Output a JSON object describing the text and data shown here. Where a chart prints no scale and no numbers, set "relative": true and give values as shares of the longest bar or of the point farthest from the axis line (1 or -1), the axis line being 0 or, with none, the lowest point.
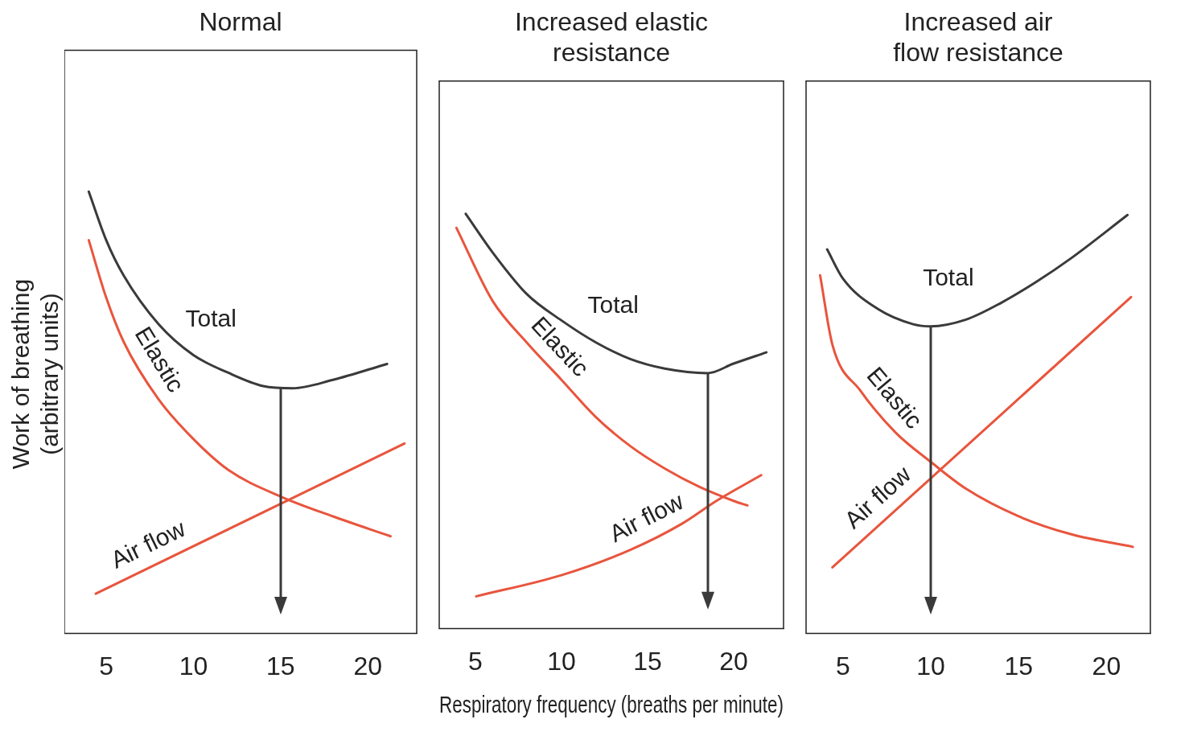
{
  "chart_data": [
    {
      "type": "line",
      "title": "Normal",
      "ylabel": "Work of breathing (arbitrary units)",
      "relative": true,
      "xlim": [
        2.6,
        22.8
      ],
      "xticks": [
        5,
        10,
        15,
        20
      ],
      "grid": false,
      "legend": false,
      "marker": "none",
      "ref_lines": [
        {
          "axis": "x",
          "value": 15,
          "color": "#3a3a3a"
        }
      ],
      "series": [
        {
          "name": "Total",
          "color": "#3a3a3a",
          "x": [
            4,
            5,
            6,
            8,
            10,
            12,
            14,
            15.7,
            18,
            21.1
          ],
          "values": [
            1.0,
            0.89,
            0.81,
            0.7,
            0.63,
            0.59,
            0.56,
            0.555,
            0.574,
            0.61
          ]
        },
        {
          "name": "Elastic",
          "color": "#e8553d",
          "x": [
            4,
            5,
            6,
            8,
            10,
            12,
            15,
            18,
            21.3
          ],
          "values": [
            0.89,
            0.76,
            0.66,
            0.53,
            0.44,
            0.37,
            0.31,
            0.265,
            0.22
          ]
        },
        {
          "name": "Air flow",
          "color": "#e8553d",
          "x": [
            4.4,
            22.1
          ],
          "values": [
            0.09,
            0.43
          ]
        }
      ]
    },
    {
      "type": "line",
      "title": "Increased elastic resistance",
      "xlabel": "Respiratory frequency (breaths per minute)",
      "relative": true,
      "xlim": [
        2.9,
        22.9
      ],
      "xticks": [
        5,
        10,
        15,
        20
      ],
      "grid": false,
      "legend": false,
      "marker": "none",
      "ref_lines": [
        {
          "axis": "x",
          "value": 18.5,
          "color": "#3a3a3a"
        }
      ],
      "series": [
        {
          "name": "Total",
          "color": "#3a3a3a",
          "x": [
            4.44,
            6,
            8,
            10,
            12,
            14,
            16,
            18.5,
            20,
            21.9
          ],
          "values": [
            1.0,
            0.907,
            0.806,
            0.743,
            0.69,
            0.65,
            0.627,
            0.616,
            0.639,
            0.666
          ]
        },
        {
          "name": "Elastic",
          "color": "#e8553d",
          "x": [
            3.9,
            6,
            8,
            10,
            12,
            14,
            16,
            18,
            20,
            20.8
          ],
          "values": [
            0.966,
            0.79,
            0.689,
            0.6,
            0.51,
            0.44,
            0.386,
            0.342,
            0.308,
            0.297
          ]
        },
        {
          "name": "Air flow",
          "color": "#e8553d",
          "x": [
            5.05,
            10,
            14,
            17,
            19,
            21.6
          ],
          "values": [
            0.078,
            0.129,
            0.19,
            0.253,
            0.308,
            0.37
          ]
        }
      ]
    },
    {
      "type": "line",
      "title": "Increased air flow resistance",
      "relative": true,
      "xlim": [
        2.9,
        22.5
      ],
      "xticks": [
        5,
        10,
        15,
        20
      ],
      "grid": false,
      "legend": false,
      "marker": "none",
      "ref_lines": [
        {
          "axis": "x",
          "value": 10,
          "color": "#3a3a3a"
        }
      ],
      "series": [
        {
          "name": "Total",
          "color": "#3a3a3a",
          "x": [
            4.1,
            5,
            7,
            9,
            10,
            12,
            14,
            16,
            18,
            21.2
          ],
          "values": [
            0.918,
            0.848,
            0.775,
            0.739,
            0.734,
            0.75,
            0.79,
            0.84,
            0.897,
            1.0
          ]
        },
        {
          "name": "Elastic",
          "color": "#e8553d",
          "x": [
            3.7,
            4.4,
            6,
            8,
            10,
            12,
            15,
            18,
            21.5
          ],
          "values": [
            0.856,
            0.69,
            0.58,
            0.48,
            0.41,
            0.346,
            0.28,
            0.237,
            0.207
          ]
        },
        {
          "name": "Air flow",
          "color": "#e8553d",
          "x": [
            4.4,
            21.4
          ],
          "values": [
            0.158,
            0.804
          ]
        }
      ]
    }
  ]
}
